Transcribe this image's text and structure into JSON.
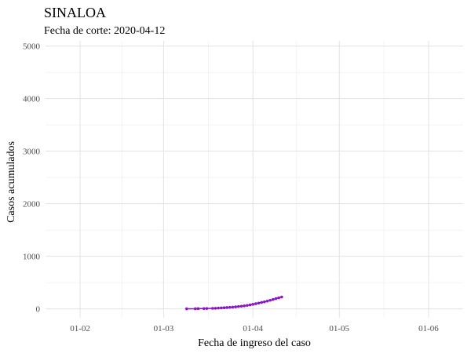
{
  "chart_data": {
    "type": "line",
    "title": "SINALOA",
    "subtitle": "Fecha de corte: 2020-04-12",
    "xlabel": "Fecha de ingreso del caso",
    "ylabel": "Casos acumulados",
    "grid": true,
    "legend": "none",
    "colors": {
      "series": "#8b16c4"
    },
    "x_ticks": [
      {
        "date": "2020-02-01",
        "label": "01-02"
      },
      {
        "date": "2020-03-01",
        "label": "01-03"
      },
      {
        "date": "2020-04-01",
        "label": "01-04"
      },
      {
        "date": "2020-05-01",
        "label": "01-05"
      },
      {
        "date": "2020-06-01",
        "label": "01-06"
      }
    ],
    "y_ticks": [
      0,
      1000,
      2000,
      3000,
      4000,
      5000
    ],
    "xlim": [
      "2020-01-20",
      "2020-06-13"
    ],
    "ylim": [
      -170,
      5100
    ],
    "series": [
      {
        "x": [
          "2020-03-09",
          "2020-03-12",
          "2020-03-13",
          "2020-03-15",
          "2020-03-16",
          "2020-03-18",
          "2020-03-19",
          "2020-03-20",
          "2020-03-21",
          "2020-03-22",
          "2020-03-23",
          "2020-03-24",
          "2020-03-25",
          "2020-03-26",
          "2020-03-27",
          "2020-03-28",
          "2020-03-29",
          "2020-03-30",
          "2020-03-31",
          "2020-04-01",
          "2020-04-02",
          "2020-04-03",
          "2020-04-04",
          "2020-04-05",
          "2020-04-06",
          "2020-04-07",
          "2020-04-08",
          "2020-04-09",
          "2020-04-10",
          "2020-04-11"
        ],
        "y": [
          1,
          2,
          4,
          5,
          7,
          9,
          11,
          14,
          17,
          21,
          25,
          29,
          33,
          38,
          44,
          50,
          57,
          65,
          75,
          86,
          98,
          110,
          122,
          134,
          147,
          162,
          178,
          195,
          210,
          225
        ]
      }
    ]
  }
}
